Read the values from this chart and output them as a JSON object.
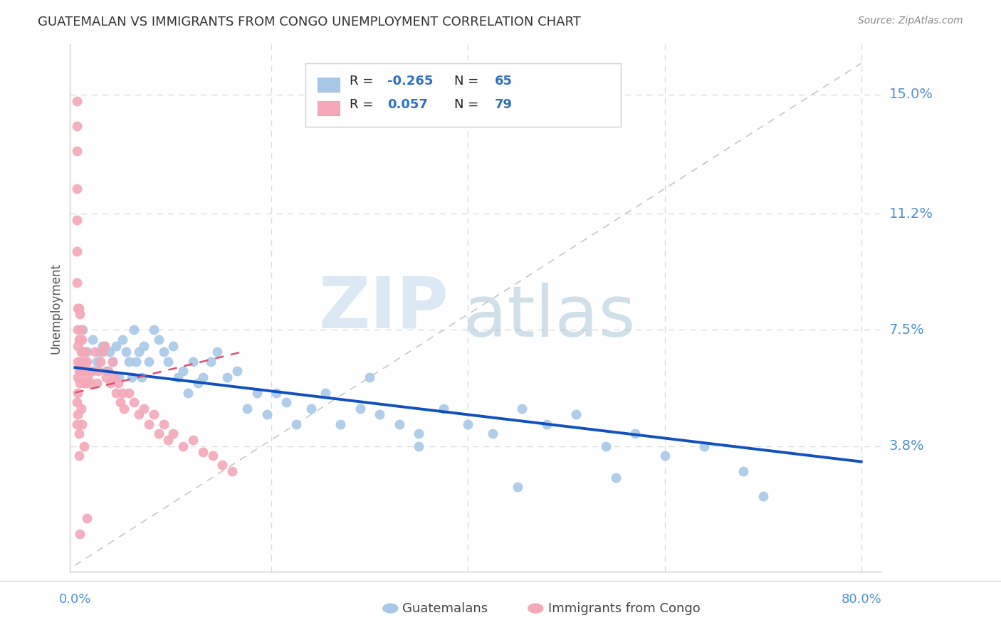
{
  "title": "GUATEMALAN VS IMMIGRANTS FROM CONGO UNEMPLOYMENT CORRELATION CHART",
  "source": "Source: ZipAtlas.com",
  "ylabel": "Unemployment",
  "legend_label1": "Guatemalans",
  "legend_label2": "Immigrants from Congo",
  "xlim": [
    0.0,
    0.8
  ],
  "ylim": [
    0.0,
    0.16
  ],
  "ytick_vals": [
    0.038,
    0.075,
    0.112,
    0.15
  ],
  "ytick_labs": [
    "3.8%",
    "7.5%",
    "11.2%",
    "15.0%"
  ],
  "xtick_vals": [
    0.0,
    0.2,
    0.4,
    0.6,
    0.8
  ],
  "blue_color": "#A8C8E8",
  "pink_color": "#F4A8B8",
  "trend_blue_color": "#1050C0",
  "trend_pink_color": "#E05070",
  "ref_line_color": "#C8C8C8",
  "grid_color": "#DCDCDC",
  "axis_label_color": "#5090D0",
  "title_color": "#333333",
  "source_color": "#888888",
  "background_color": "#FFFFFF",
  "legend_text_color": "#222222",
  "legend_value_color": "#3070C0",
  "scatter_blue_x": [
    0.008,
    0.012,
    0.018,
    0.022,
    0.025,
    0.028,
    0.032,
    0.035,
    0.038,
    0.042,
    0.045,
    0.048,
    0.052,
    0.055,
    0.058,
    0.06,
    0.062,
    0.065,
    0.068,
    0.07,
    0.075,
    0.08,
    0.085,
    0.09,
    0.095,
    0.1,
    0.105,
    0.11,
    0.115,
    0.12,
    0.125,
    0.13,
    0.138,
    0.145,
    0.155,
    0.165,
    0.175,
    0.185,
    0.195,
    0.205,
    0.215,
    0.225,
    0.24,
    0.255,
    0.27,
    0.29,
    0.31,
    0.33,
    0.35,
    0.375,
    0.4,
    0.425,
    0.455,
    0.48,
    0.51,
    0.54,
    0.57,
    0.6,
    0.64,
    0.68,
    0.3,
    0.35,
    0.45,
    0.55,
    0.7
  ],
  "scatter_blue_y": [
    0.075,
    0.068,
    0.072,
    0.065,
    0.068,
    0.07,
    0.062,
    0.068,
    0.065,
    0.07,
    0.06,
    0.072,
    0.068,
    0.065,
    0.06,
    0.075,
    0.065,
    0.068,
    0.06,
    0.07,
    0.065,
    0.075,
    0.072,
    0.068,
    0.065,
    0.07,
    0.06,
    0.062,
    0.055,
    0.065,
    0.058,
    0.06,
    0.065,
    0.068,
    0.06,
    0.062,
    0.05,
    0.055,
    0.048,
    0.055,
    0.052,
    0.045,
    0.05,
    0.055,
    0.045,
    0.05,
    0.048,
    0.045,
    0.042,
    0.05,
    0.045,
    0.042,
    0.05,
    0.045,
    0.048,
    0.038,
    0.042,
    0.035,
    0.038,
    0.03,
    0.06,
    0.038,
    0.025,
    0.028,
    0.022
  ],
  "scatter_pink_x": [
    0.002,
    0.002,
    0.002,
    0.002,
    0.002,
    0.002,
    0.002,
    0.003,
    0.003,
    0.003,
    0.003,
    0.003,
    0.004,
    0.004,
    0.004,
    0.005,
    0.005,
    0.005,
    0.005,
    0.006,
    0.006,
    0.006,
    0.007,
    0.007,
    0.008,
    0.008,
    0.009,
    0.009,
    0.01,
    0.01,
    0.011,
    0.012,
    0.013,
    0.015,
    0.016,
    0.018,
    0.02,
    0.022,
    0.024,
    0.026,
    0.028,
    0.03,
    0.032,
    0.034,
    0.036,
    0.038,
    0.04,
    0.042,
    0.044,
    0.046,
    0.048,
    0.05,
    0.055,
    0.06,
    0.065,
    0.07,
    0.075,
    0.08,
    0.085,
    0.09,
    0.095,
    0.1,
    0.11,
    0.12,
    0.13,
    0.14,
    0.15,
    0.16,
    0.012,
    0.005,
    0.003,
    0.004,
    0.007,
    0.009,
    0.006,
    0.003,
    0.002,
    0.002,
    0.004
  ],
  "scatter_pink_y": [
    0.148,
    0.14,
    0.132,
    0.12,
    0.11,
    0.1,
    0.09,
    0.082,
    0.075,
    0.07,
    0.065,
    0.06,
    0.082,
    0.072,
    0.062,
    0.08,
    0.072,
    0.065,
    0.058,
    0.075,
    0.068,
    0.062,
    0.072,
    0.065,
    0.068,
    0.062,
    0.065,
    0.058,
    0.068,
    0.062,
    0.058,
    0.065,
    0.06,
    0.062,
    0.058,
    0.062,
    0.068,
    0.058,
    0.062,
    0.065,
    0.068,
    0.07,
    0.06,
    0.062,
    0.058,
    0.065,
    0.06,
    0.055,
    0.058,
    0.052,
    0.055,
    0.05,
    0.055,
    0.052,
    0.048,
    0.05,
    0.045,
    0.048,
    0.042,
    0.045,
    0.04,
    0.042,
    0.038,
    0.04,
    0.036,
    0.035,
    0.032,
    0.03,
    0.015,
    0.01,
    0.048,
    0.042,
    0.045,
    0.038,
    0.05,
    0.055,
    0.052,
    0.045,
    0.035
  ],
  "trend_blue_start_x": 0.0,
  "trend_blue_end_x": 0.8,
  "trend_blue_start_y": 0.063,
  "trend_blue_end_y": 0.033,
  "trend_pink_start_x": 0.0,
  "trend_pink_end_x": 0.17,
  "trend_pink_start_y": 0.055,
  "trend_pink_end_y": 0.068
}
